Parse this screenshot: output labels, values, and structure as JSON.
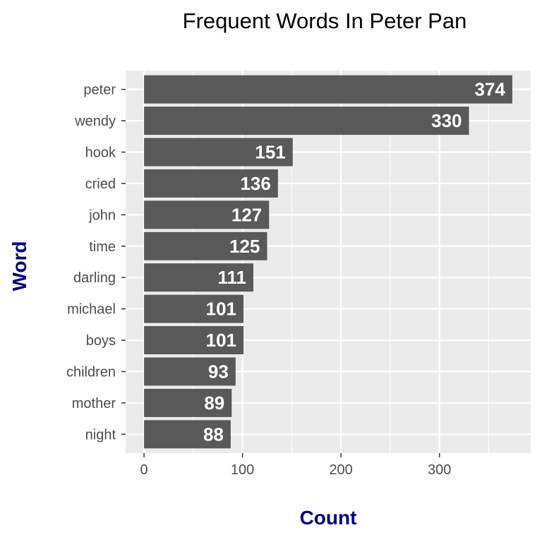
{
  "chart_data": {
    "type": "bar",
    "orientation": "horizontal",
    "title": "Frequent Words In Peter Pan",
    "xlabel": "Count",
    "ylabel": "Word",
    "categories": [
      "peter",
      "wendy",
      "hook",
      "cried",
      "john",
      "time",
      "darling",
      "michael",
      "boys",
      "children",
      "mother",
      "night"
    ],
    "values": [
      374,
      330,
      151,
      136,
      127,
      125,
      111,
      101,
      101,
      93,
      89,
      88
    ],
    "data_labels": [
      "374",
      "330",
      "151",
      "136",
      "127",
      "125",
      "111",
      "101",
      "101",
      "93",
      "89",
      "88"
    ],
    "xlim": [
      -18.7,
      392.7
    ],
    "x_ticks": [
      0,
      100,
      200,
      300
    ],
    "x_tick_labels": [
      "0",
      "100",
      "200",
      "300"
    ],
    "grid": true,
    "legend": "none"
  },
  "colors": {
    "panel_background": "#ebebeb",
    "gridline": "#ffffff",
    "bar_fill": "#595959",
    "data_label": "#ffffff",
    "axis_title": "#000080",
    "tick_text": "#4d4d4d"
  }
}
